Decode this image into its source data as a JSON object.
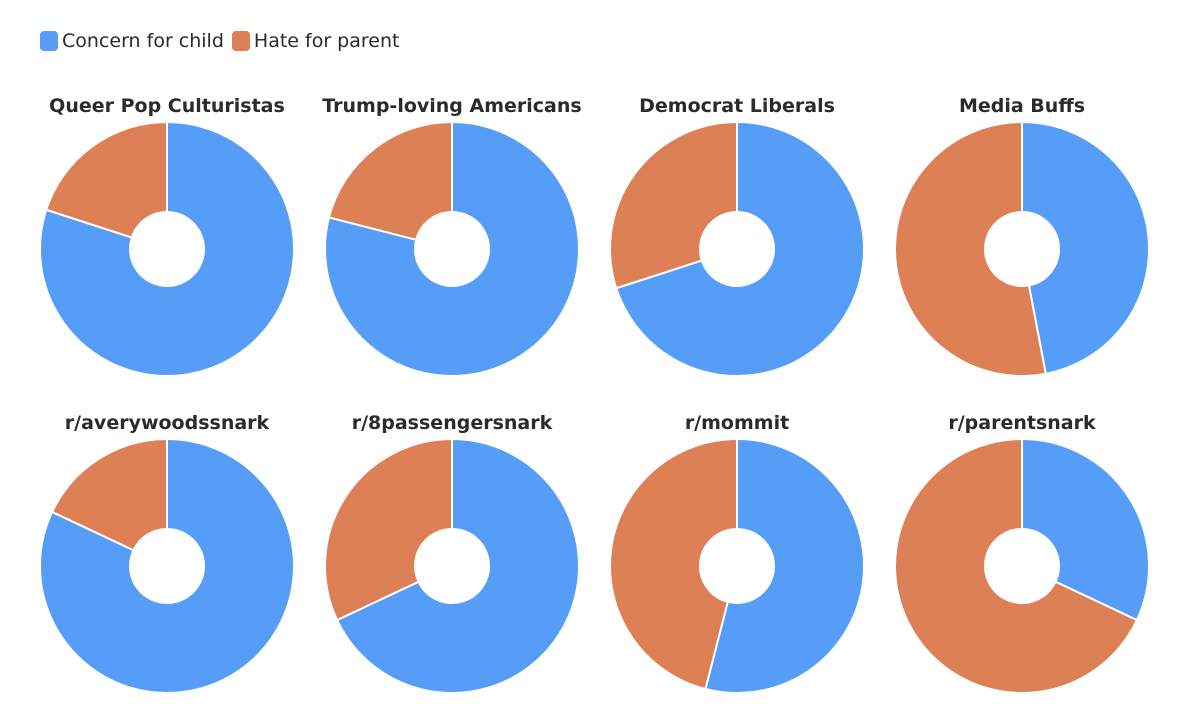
{
  "chart_data": {
    "type": "pie",
    "variant": "donut",
    "legend": {
      "placement": "top-left",
      "entries": [
        "Concern for child",
        "Hate for parent"
      ]
    },
    "colors": {
      "Concern for child": "#559df7",
      "Hate for parent": "#dd8055"
    },
    "charts": [
      {
        "title": "Queer Pop Culturistas",
        "values": {
          "Concern for child": 80,
          "Hate for parent": 20
        }
      },
      {
        "title": "Trump-loving Americans",
        "values": {
          "Concern for child": 79,
          "Hate for parent": 21
        }
      },
      {
        "title": "Democrat Liberals",
        "values": {
          "Concern for child": 70,
          "Hate for parent": 30
        }
      },
      {
        "title": "Media Buffs",
        "values": {
          "Concern for child": 47,
          "Hate for parent": 53
        }
      },
      {
        "title": "r/averywoodssnark",
        "values": {
          "Concern for child": 82,
          "Hate for parent": 18
        }
      },
      {
        "title": "r/8passengersnark",
        "values": {
          "Concern for child": 68,
          "Hate for parent": 32
        }
      },
      {
        "title": "r/mommit",
        "values": {
          "Concern for child": 54,
          "Hate for parent": 46
        }
      },
      {
        "title": "r/parentsnark",
        "values": {
          "Concern for child": 32,
          "Hate for parent": 68
        }
      }
    ]
  }
}
